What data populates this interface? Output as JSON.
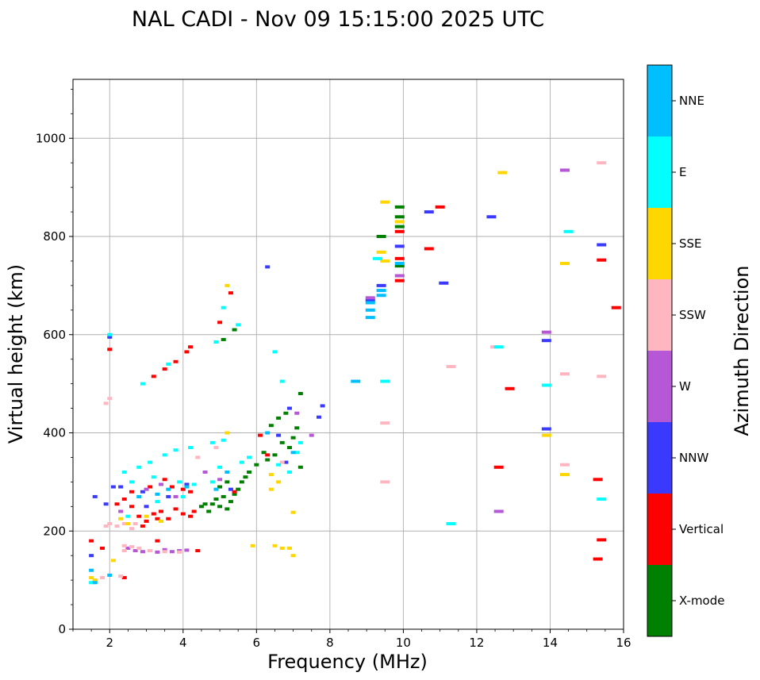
{
  "chart_data": {
    "type": "scatter",
    "title": "NAL CADI - Nov 09 15:15:00 2025 UTC",
    "xlabel": "Frequency (MHz)",
    "ylabel": "Virtual height (km)",
    "xlim": [
      1,
      16
    ],
    "ylim": [
      0,
      1120
    ],
    "xticks": [
      2,
      4,
      6,
      8,
      10,
      12,
      14,
      16
    ],
    "yticks": [
      0,
      200,
      400,
      600,
      800,
      1000
    ],
    "grid": true,
    "colorbar": {
      "label": "Azimuth Direction",
      "categories": [
        {
          "name": "X-mode",
          "color": "#008000"
        },
        {
          "name": "Vertical",
          "color": "#ff0000"
        },
        {
          "name": "NNW",
          "color": "#3a3aff"
        },
        {
          "name": "W",
          "color": "#b657d6"
        },
        {
          "name": "SSW",
          "color": "#ffb6c1"
        },
        {
          "name": "SSE",
          "color": "#ffd700"
        },
        {
          "name": "E",
          "color": "#00ffff"
        },
        {
          "name": "NNE",
          "color": "#00bfff"
        }
      ]
    },
    "series": [
      {
        "name": "X-mode",
        "points": [
          [
            4.7,
            240
          ],
          [
            4.8,
            255
          ],
          [
            4.9,
            265
          ],
          [
            5.0,
            250
          ],
          [
            5.1,
            270
          ],
          [
            5.2,
            245
          ],
          [
            5.3,
            260
          ],
          [
            5.4,
            275
          ],
          [
            5.5,
            285
          ],
          [
            5.6,
            300
          ],
          [
            5.7,
            310
          ],
          [
            5.0,
            290
          ],
          [
            5.2,
            300
          ],
          [
            4.6,
            255
          ],
          [
            4.5,
            250
          ],
          [
            5.8,
            320
          ],
          [
            6.0,
            335
          ],
          [
            6.3,
            345
          ],
          [
            6.5,
            355
          ],
          [
            6.4,
            415
          ],
          [
            6.6,
            430
          ],
          [
            6.8,
            440
          ],
          [
            7.0,
            390
          ],
          [
            7.1,
            410
          ],
          [
            7.2,
            330
          ],
          [
            7.2,
            480
          ],
          [
            9.4,
            800
          ],
          [
            9.9,
            860
          ],
          [
            9.9,
            840
          ],
          [
            9.9,
            820
          ],
          [
            9.9,
            740
          ],
          [
            5.1,
            590
          ],
          [
            5.4,
            610
          ],
          [
            6.7,
            380
          ],
          [
            6.9,
            370
          ],
          [
            6.2,
            360
          ]
        ]
      },
      {
        "name": "Vertical",
        "points": [
          [
            2.2,
            255
          ],
          [
            2.4,
            265
          ],
          [
            2.6,
            250
          ],
          [
            2.8,
            230
          ],
          [
            3.0,
            220
          ],
          [
            3.2,
            235
          ],
          [
            3.4,
            240
          ],
          [
            3.6,
            225
          ],
          [
            3.8,
            245
          ],
          [
            4.0,
            235
          ],
          [
            4.2,
            230
          ],
          [
            4.3,
            240
          ],
          [
            2.9,
            210
          ],
          [
            3.3,
            225
          ],
          [
            3.7,
            290
          ],
          [
            4.0,
            285
          ],
          [
            4.2,
            280
          ],
          [
            3.5,
            305
          ],
          [
            4.4,
            160
          ],
          [
            3.3,
            180
          ],
          [
            2.0,
            570
          ],
          [
            3.2,
            515
          ],
          [
            3.5,
            530
          ],
          [
            3.8,
            545
          ],
          [
            4.1,
            565
          ],
          [
            4.2,
            575
          ],
          [
            5.0,
            625
          ],
          [
            5.3,
            685
          ],
          [
            2.4,
            105
          ],
          [
            1.5,
            180
          ],
          [
            1.8,
            165
          ],
          [
            5.4,
            280
          ],
          [
            6.1,
            395
          ],
          [
            6.3,
            355
          ],
          [
            11.0,
            860
          ],
          [
            10.7,
            775
          ],
          [
            12.9,
            490
          ],
          [
            12.6,
            330
          ],
          [
            15.3,
            305
          ],
          [
            15.4,
            182
          ],
          [
            15.3,
            143
          ],
          [
            15.4,
            752
          ],
          [
            15.8,
            655
          ],
          [
            9.9,
            710
          ],
          [
            9.9,
            755
          ],
          [
            9.9,
            810
          ],
          [
            2.6,
            280
          ],
          [
            3.1,
            290
          ]
        ]
      },
      {
        "name": "NNW",
        "points": [
          [
            1.6,
            270
          ],
          [
            1.9,
            255
          ],
          [
            2.3,
            290
          ],
          [
            2.9,
            280
          ],
          [
            3.6,
            270
          ],
          [
            4.1,
            295
          ],
          [
            5.3,
            285
          ],
          [
            9.1,
            670
          ],
          [
            9.4,
            700
          ],
          [
            10.7,
            850
          ],
          [
            11.1,
            705
          ],
          [
            12.4,
            840
          ],
          [
            13.9,
            588
          ],
          [
            13.9,
            408
          ],
          [
            14.4,
            935
          ],
          [
            15.4,
            783
          ],
          [
            9.9,
            780
          ],
          [
            7.8,
            455
          ],
          [
            7.7,
            432
          ],
          [
            6.9,
            450
          ],
          [
            6.6,
            395
          ],
          [
            6.3,
            738
          ],
          [
            6.8,
            340
          ],
          [
            2.0,
            595
          ],
          [
            2.1,
            290
          ],
          [
            3.0,
            250
          ],
          [
            1.5,
            150
          ]
        ]
      },
      {
        "name": "W",
        "points": [
          [
            2.7,
            160
          ],
          [
            2.9,
            158
          ],
          [
            3.1,
            160
          ],
          [
            3.3,
            157
          ],
          [
            3.5,
            162
          ],
          [
            3.7,
            158
          ],
          [
            3.9,
            160
          ],
          [
            4.1,
            161
          ],
          [
            2.5,
            165
          ],
          [
            3.0,
            285
          ],
          [
            3.4,
            295
          ],
          [
            3.8,
            270
          ],
          [
            2.3,
            240
          ],
          [
            9.1,
            675
          ],
          [
            9.9,
            720
          ],
          [
            12.6,
            240
          ],
          [
            13.9,
            605
          ],
          [
            14.4,
            935
          ],
          [
            7.5,
            395
          ],
          [
            7.1,
            440
          ],
          [
            5.0,
            305
          ],
          [
            4.6,
            320
          ]
        ]
      },
      {
        "name": "SSW",
        "points": [
          [
            1.9,
            210
          ],
          [
            2.0,
            215
          ],
          [
            2.2,
            210
          ],
          [
            2.4,
            215
          ],
          [
            2.6,
            205
          ],
          [
            2.4,
            170
          ],
          [
            2.6,
            168
          ],
          [
            2.8,
            165
          ],
          [
            3.1,
            160
          ],
          [
            3.5,
            158
          ],
          [
            3.9,
            157
          ],
          [
            2.4,
            160
          ],
          [
            2.0,
            470
          ],
          [
            1.9,
            460
          ],
          [
            1.6,
            100
          ],
          [
            1.8,
            105
          ],
          [
            2.3,
            108
          ],
          [
            9.5,
            420
          ],
          [
            9.5,
            300
          ],
          [
            11.3,
            535
          ],
          [
            14.4,
            520
          ],
          [
            14.4,
            335
          ],
          [
            15.4,
            515
          ],
          [
            15.4,
            950
          ],
          [
            12.5,
            575
          ],
          [
            4.9,
            370
          ],
          [
            4.4,
            350
          ],
          [
            6.7,
            340
          ],
          [
            2.7,
            215
          ]
        ]
      },
      {
        "name": "SSE",
        "points": [
          [
            1.5,
            105
          ],
          [
            1.6,
            100
          ],
          [
            2.3,
            225
          ],
          [
            2.5,
            215
          ],
          [
            3.0,
            230
          ],
          [
            3.4,
            220
          ],
          [
            6.6,
            300
          ],
          [
            6.4,
            285
          ],
          [
            6.5,
            170
          ],
          [
            6.7,
            165
          ],
          [
            6.9,
            165
          ],
          [
            7.0,
            150
          ],
          [
            5.9,
            170
          ],
          [
            7.0,
            238
          ],
          [
            9.5,
            870
          ],
          [
            9.4,
            768
          ],
          [
            9.5,
            750
          ],
          [
            12.7,
            930
          ],
          [
            14.4,
            745
          ],
          [
            14.4,
            315
          ],
          [
            13.9,
            395
          ],
          [
            5.2,
            700
          ],
          [
            5.2,
            400
          ],
          [
            6.4,
            315
          ],
          [
            9.9,
            830
          ],
          [
            2.1,
            140
          ]
        ]
      },
      {
        "name": "E",
        "points": [
          [
            2.4,
            320
          ],
          [
            2.8,
            330
          ],
          [
            3.1,
            340
          ],
          [
            3.5,
            355
          ],
          [
            3.8,
            365
          ],
          [
            4.2,
            370
          ],
          [
            2.6,
            300
          ],
          [
            3.2,
            310
          ],
          [
            3.9,
            300
          ],
          [
            4.3,
            295
          ],
          [
            4.8,
            300
          ],
          [
            5.0,
            330
          ],
          [
            2.8,
            270
          ],
          [
            3.3,
            260
          ],
          [
            2.9,
            500
          ],
          [
            3.6,
            540
          ],
          [
            4.8,
            380
          ],
          [
            5.1,
            385
          ],
          [
            5.6,
            340
          ],
          [
            5.5,
            620
          ],
          [
            4.9,
            585
          ],
          [
            5.1,
            655
          ],
          [
            6.5,
            565
          ],
          [
            6.7,
            505
          ],
          [
            6.6,
            335
          ],
          [
            7.1,
            360
          ],
          [
            6.9,
            320
          ],
          [
            7.2,
            380
          ],
          [
            9.5,
            505
          ],
          [
            9.3,
            755
          ],
          [
            11.3,
            215
          ],
          [
            12.6,
            575
          ],
          [
            13.9,
            497
          ],
          [
            14.5,
            810
          ],
          [
            15.4,
            265
          ],
          [
            2.0,
            600
          ],
          [
            1.5,
            95
          ],
          [
            2.5,
            230
          ],
          [
            4.0,
            270
          ],
          [
            5.8,
            350
          ]
        ]
      },
      {
        "name": "NNE",
        "points": [
          [
            9.1,
            635
          ],
          [
            9.1,
            650
          ],
          [
            9.1,
            665
          ],
          [
            9.4,
            680
          ],
          [
            9.4,
            690
          ],
          [
            9.9,
            745
          ],
          [
            8.7,
            505
          ],
          [
            2.8,
            270
          ],
          [
            3.6,
            285
          ],
          [
            4.1,
            290
          ],
          [
            4.9,
            285
          ],
          [
            1.5,
            120
          ],
          [
            1.6,
            95
          ],
          [
            2.0,
            110
          ],
          [
            5.2,
            320
          ],
          [
            6.3,
            400
          ],
          [
            7.0,
            360
          ],
          [
            3.3,
            275
          ]
        ]
      }
    ]
  }
}
